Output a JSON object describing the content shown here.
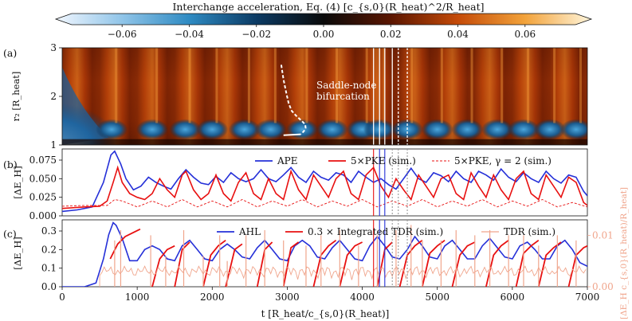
{
  "chart_data": [
    {
      "panel": "colorbar",
      "type": "heatmap",
      "title": "Interchange acceleration, Eq. (4) [c_{s,0}(R_heat)^2/R_heat]",
      "range": [
        -0.075,
        0.075
      ],
      "ticks": [
        -0.06,
        -0.04,
        -0.02,
        0.0,
        0.02,
        0.04,
        0.06
      ],
      "tick_labels": [
        "−0.06",
        "−0.04",
        "−0.02",
        "0.00",
        "0.02",
        "0.04",
        "0.06"
      ],
      "colormap": [
        "#f2f7ff",
        "#8fc4e8",
        "#2e8ac2",
        "#0b3a63",
        "#0a0a0a",
        "#5a1500",
        "#c44a08",
        "#f2a23a",
        "#fff6dc"
      ]
    },
    {
      "panel": "a",
      "panel_label": "(a)",
      "type": "heatmap",
      "xlim": [
        0,
        7000
      ],
      "ylim": [
        1,
        3
      ],
      "ylabel": "r₂ [R_heat]",
      "yticks": [
        1,
        2,
        3
      ],
      "annotation": [
        "Saddle-node",
        "bifurcation"
      ],
      "bifurcation_curve": {
        "t": [
          2920,
          2950,
          2990,
          3020,
          3060,
          3120,
          3190,
          3240,
          3245,
          3220,
          3180
        ],
        "r2": [
          2.65,
          2.35,
          2.05,
          1.85,
          1.7,
          1.6,
          1.5,
          1.42,
          1.35,
          1.28,
          1.22
        ]
      },
      "bursts_t": [
        660,
        1200,
        1640,
        2000,
        2430,
        2780,
        3200,
        3600,
        4000,
        4230,
        4600,
        5000,
        5400,
        5800,
        6150,
        6500,
        6850
      ],
      "markers_t": [
        4150,
        4230,
        4300,
        4400,
        4480,
        4600
      ]
    },
    {
      "panel": "b",
      "panel_label": "(b)",
      "type": "line",
      "xlim": [
        0,
        7000
      ],
      "ylim": [
        0,
        0.09
      ],
      "yticks": [
        0.0,
        0.025,
        0.05,
        0.075
      ],
      "ytick_labels": [
        "0.000",
        "0.025",
        "0.050",
        "0.075"
      ],
      "ylabel": "[ΔE_H]",
      "legend": [
        "APE",
        "5×PKE (sim.)",
        "5×PKE, γ = 2 (sim.)"
      ],
      "series": [
        {
          "name": "APE",
          "color": "#2530d8",
          "t": [
            0,
            200,
            400,
            550,
            650,
            700,
            780,
            850,
            950,
            1050,
            1150,
            1250,
            1350,
            1450,
            1550,
            1650,
            1750,
            1850,
            1950,
            2050,
            2150,
            2250,
            2350,
            2450,
            2550,
            2650,
            2750,
            2850,
            2950,
            3050,
            3150,
            3250,
            3350,
            3450,
            3550,
            3650,
            3750,
            3850,
            3950,
            4050,
            4150,
            4250,
            4350,
            4450,
            4550,
            4650,
            4750,
            4850,
            4950,
            5050,
            5150,
            5250,
            5350,
            5450,
            5550,
            5650,
            5750,
            5850,
            5950,
            6050,
            6150,
            6250,
            6350,
            6450,
            6550,
            6650,
            6750,
            6850,
            6950,
            7000
          ],
          "values": [
            0.006,
            0.008,
            0.012,
            0.045,
            0.082,
            0.087,
            0.07,
            0.05,
            0.035,
            0.04,
            0.052,
            0.045,
            0.04,
            0.036,
            0.05,
            0.062,
            0.052,
            0.044,
            0.042,
            0.053,
            0.045,
            0.058,
            0.05,
            0.046,
            0.05,
            0.062,
            0.05,
            0.046,
            0.055,
            0.065,
            0.052,
            0.045,
            0.06,
            0.052,
            0.048,
            0.058,
            0.055,
            0.045,
            0.06,
            0.052,
            0.045,
            0.05,
            0.042,
            0.036,
            0.05,
            0.064,
            0.05,
            0.045,
            0.058,
            0.054,
            0.046,
            0.06,
            0.05,
            0.045,
            0.06,
            0.055,
            0.048,
            0.063,
            0.052,
            0.046,
            0.058,
            0.05,
            0.045,
            0.06,
            0.05,
            0.044,
            0.055,
            0.052,
            0.033,
            0.027
          ]
        },
        {
          "name": "5×PKE (sim.)",
          "color": "#e81010",
          "t": [
            0,
            300,
            500,
            600,
            680,
            740,
            800,
            900,
            1000,
            1100,
            1200,
            1300,
            1400,
            1500,
            1600,
            1650,
            1750,
            1850,
            1950,
            2050,
            2150,
            2250,
            2350,
            2450,
            2550,
            2650,
            2750,
            2850,
            2950,
            3050,
            3150,
            3250,
            3350,
            3450,
            3550,
            3650,
            3750,
            3850,
            3950,
            4050,
            4150,
            4250,
            4350,
            4450,
            4550,
            4650,
            4750,
            4850,
            4950,
            5050,
            5150,
            5250,
            5350,
            5450,
            5550,
            5650,
            5750,
            5850,
            5950,
            6050,
            6150,
            6250,
            6350,
            6450,
            6550,
            6650,
            6750,
            6850,
            6950,
            7000
          ],
          "values": [
            0.01,
            0.012,
            0.013,
            0.02,
            0.045,
            0.065,
            0.045,
            0.03,
            0.025,
            0.022,
            0.03,
            0.05,
            0.035,
            0.025,
            0.055,
            0.06,
            0.035,
            0.022,
            0.03,
            0.055,
            0.03,
            0.02,
            0.045,
            0.058,
            0.03,
            0.022,
            0.05,
            0.03,
            0.022,
            0.06,
            0.035,
            0.022,
            0.055,
            0.04,
            0.025,
            0.05,
            0.06,
            0.03,
            0.022,
            0.055,
            0.065,
            0.04,
            0.025,
            0.05,
            0.035,
            0.022,
            0.055,
            0.04,
            0.025,
            0.05,
            0.055,
            0.03,
            0.022,
            0.058,
            0.04,
            0.025,
            0.055,
            0.035,
            0.022,
            0.05,
            0.06,
            0.03,
            0.022,
            0.055,
            0.04,
            0.025,
            0.052,
            0.045,
            0.018,
            0.014
          ]
        },
        {
          "name": "5×PKE, γ = 2 (sim.)",
          "color": "#e81010",
          "dashed": true,
          "t": [
            0,
            300,
            600,
            700,
            800,
            1000,
            1200,
            1400,
            1600,
            1800,
            2000,
            2200,
            2400,
            2600,
            2800,
            3000,
            3200,
            3400,
            3600,
            3800,
            4000,
            4200,
            4400,
            4600,
            4800,
            5000,
            5200,
            5400,
            5600,
            5800,
            6000,
            6200,
            6400,
            6600,
            6800,
            7000
          ],
          "values": [
            0.013,
            0.014,
            0.014,
            0.022,
            0.02,
            0.012,
            0.02,
            0.012,
            0.022,
            0.012,
            0.02,
            0.012,
            0.022,
            0.012,
            0.02,
            0.013,
            0.022,
            0.012,
            0.02,
            0.013,
            0.022,
            0.012,
            0.02,
            0.013,
            0.022,
            0.012,
            0.02,
            0.013,
            0.022,
            0.012,
            0.02,
            0.013,
            0.022,
            0.012,
            0.018,
            0.012
          ]
        }
      ],
      "vlines_t": [
        4150,
        4230,
        4300,
        4400,
        4480,
        4600
      ]
    },
    {
      "panel": "c",
      "panel_label": "(c)",
      "type": "line",
      "xlim": [
        0,
        7000
      ],
      "ylim": [
        0,
        0.36
      ],
      "yticks": [
        0.0,
        0.1,
        0.2,
        0.3
      ],
      "ytick_labels": [
        "0.0",
        "0.1",
        "0.2",
        "0.3"
      ],
      "ylabel": "[ΔE_H]",
      "ylabel_right": "[ΔE_H c_{s,0}(R_heat)/R_heat]",
      "ylim_right": [
        0,
        0.013
      ],
      "yticks_right": [
        0.0,
        0.01
      ],
      "ytick_labels_right": [
        "0.00",
        "0.01"
      ],
      "xticks": [
        0,
        1000,
        2000,
        3000,
        4000,
        5000,
        6000,
        7000
      ],
      "xlabel": "t [R_heat/c_{s,0}(R_heat)]",
      "legend": [
        "AHL",
        "0.3 × Integrated TDR (sim.)",
        "TDR (sim.)"
      ],
      "series": [
        {
          "name": "AHL",
          "color": "#2530d8",
          "t": [
            0,
            300,
            450,
            550,
            620,
            680,
            720,
            800,
            900,
            1000,
            1100,
            1200,
            1300,
            1400,
            1500,
            1600,
            1700,
            1800,
            1900,
            2000,
            2100,
            2200,
            2300,
            2400,
            2500,
            2600,
            2700,
            2800,
            2900,
            3000,
            3100,
            3200,
            3300,
            3400,
            3500,
            3600,
            3700,
            3800,
            3900,
            4000,
            4100,
            4200,
            4300,
            4400,
            4500,
            4600,
            4700,
            4800,
            4900,
            5000,
            5100,
            5200,
            5300,
            5400,
            5500,
            5600,
            5700,
            5800,
            5900,
            6000,
            6100,
            6200,
            6300,
            6400,
            6500,
            6600,
            6700,
            6800,
            6900,
            7000
          ],
          "values": [
            0.0,
            0.0,
            0.02,
            0.15,
            0.28,
            0.345,
            0.33,
            0.26,
            0.14,
            0.14,
            0.2,
            0.22,
            0.2,
            0.15,
            0.14,
            0.22,
            0.25,
            0.2,
            0.15,
            0.14,
            0.2,
            0.23,
            0.2,
            0.16,
            0.15,
            0.21,
            0.25,
            0.2,
            0.15,
            0.14,
            0.22,
            0.25,
            0.22,
            0.16,
            0.15,
            0.21,
            0.25,
            0.2,
            0.15,
            0.14,
            0.22,
            0.27,
            0.22,
            0.16,
            0.15,
            0.2,
            0.27,
            0.22,
            0.16,
            0.15,
            0.22,
            0.25,
            0.2,
            0.15,
            0.15,
            0.22,
            0.26,
            0.21,
            0.16,
            0.15,
            0.22,
            0.24,
            0.2,
            0.15,
            0.15,
            0.22,
            0.25,
            0.2,
            0.13,
            0.11
          ]
        },
        {
          "name": "0.3 × Integrated TDR (sim.)",
          "color": "#e81010",
          "segments": [
            {
              "t": [
                640,
                740,
                840,
                940,
                1040
              ],
              "values": [
                0.15,
                0.23,
                0.27,
                0.29,
                0.31
              ]
            },
            {
              "t": [
                1200,
                1300,
                1400,
                1500
              ],
              "values": [
                0.0,
                0.15,
                0.2,
                0.22
              ]
            },
            {
              "t": [
                1500,
                1600,
                1700
              ],
              "values": [
                0.0,
                0.2,
                0.24
              ]
            },
            {
              "t": [
                1880,
                1980,
                2080,
                2180
              ],
              "values": [
                0.0,
                0.17,
                0.22,
                0.25
              ]
            },
            {
              "t": [
                2180,
                2300,
                2400
              ],
              "values": [
                0.0,
                0.2,
                0.23
              ]
            },
            {
              "t": [
                2600,
                2700,
                2800
              ],
              "values": [
                0.0,
                0.2,
                0.24
              ]
            },
            {
              "t": [
                2950,
                3050,
                3150
              ],
              "values": [
                0.0,
                0.21,
                0.24
              ]
            },
            {
              "t": [
                3350,
                3450,
                3550,
                3650
              ],
              "values": [
                0.0,
                0.17,
                0.22,
                0.25
              ]
            },
            {
              "t": [
                3700,
                3800,
                3900,
                4000
              ],
              "values": [
                0.0,
                0.17,
                0.22,
                0.24
              ]
            },
            {
              "t": [
                4200,
                4300,
                4400
              ],
              "values": [
                0.0,
                0.2,
                0.24
              ]
            },
            {
              "t": [
                4500,
                4600,
                4700,
                4800
              ],
              "values": [
                0.0,
                0.17,
                0.22,
                0.25
              ]
            },
            {
              "t": [
                4800,
                4900,
                5000,
                5100
              ],
              "values": [
                0.0,
                0.18,
                0.22,
                0.25
              ]
            },
            {
              "t": [
                5200,
                5300,
                5400,
                5500
              ],
              "values": [
                0.0,
                0.17,
                0.22,
                0.24
              ]
            },
            {
              "t": [
                5650,
                5750,
                5850,
                5950
              ],
              "values": [
                0.0,
                0.17,
                0.22,
                0.25
              ]
            },
            {
              "t": [
                6050,
                6150,
                6250,
                6350
              ],
              "values": [
                0.0,
                0.18,
                0.22,
                0.25
              ]
            },
            {
              "t": [
                6350,
                6450,
                6550,
                6650
              ],
              "values": [
                0.0,
                0.17,
                0.21,
                0.24
              ]
            },
            {
              "t": [
                6750,
                6850,
                6950,
                7000
              ],
              "values": [
                0.0,
                0.17,
                0.21,
                0.22
              ]
            }
          ]
        },
        {
          "name": "TDR (sim.)",
          "color": "#f0a58c",
          "axis": "right",
          "peaks_t": [
            700,
            780,
            1180,
            1380,
            1620,
            1880,
            2100,
            2200,
            2450,
            2700,
            2950,
            3250,
            3450,
            3700,
            3950,
            4200,
            4450,
            4650,
            4800,
            5050,
            5250,
            5500,
            5700,
            5950,
            6150,
            6350,
            6600,
            6850
          ],
          "peaks_value": [
            0.009,
            0.011,
            0.01,
            0.006,
            0.011,
            0.006,
            0.01,
            0.005,
            0.01,
            0.011,
            0.009,
            0.008,
            0.01,
            0.011,
            0.008,
            0.01,
            0.011,
            0.012,
            0.009,
            0.009,
            0.011,
            0.01,
            0.011,
            0.01,
            0.01,
            0.008,
            0.01,
            0.009
          ]
        }
      ],
      "vlines_t": [
        4150,
        4230,
        4300,
        4400,
        4480,
        4600
      ]
    }
  ]
}
